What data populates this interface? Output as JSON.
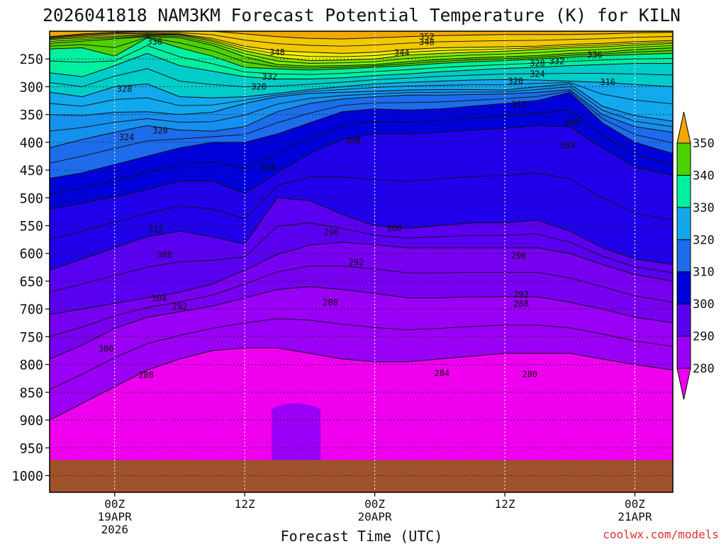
{
  "chart_data": {
    "type": "heatmap",
    "title": "2026041818 NAM3KM Forecast Potential Temperature (K) for KILN",
    "xlabel": "Forecast Time (UTC)",
    "ylabel": "",
    "watermark": "coolwx.com/models",
    "y_axis": {
      "unit": "hPa",
      "range": [
        200,
        1030
      ],
      "ticks": [
        250,
        300,
        350,
        400,
        450,
        500,
        550,
        600,
        650,
        700,
        750,
        800,
        850,
        900,
        950,
        1000
      ],
      "tick_labels": [
        "250",
        "300",
        "350",
        "400",
        "450",
        "500",
        "550",
        "600",
        "650",
        "700",
        "750",
        "800",
        "850",
        "900",
        "950",
        "1000"
      ]
    },
    "x_axis": {
      "unit": "hours since 2026-04-18 18Z",
      "range": [
        0,
        57.5
      ],
      "ticks": [
        {
          "hour": 6,
          "lines": [
            "00Z",
            "19APR",
            "2026"
          ]
        },
        {
          "hour": 18,
          "lines": [
            "12Z"
          ]
        },
        {
          "hour": 30,
          "lines": [
            "00Z",
            "20APR"
          ]
        },
        {
          "hour": 42,
          "lines": [
            "12Z"
          ]
        },
        {
          "hour": 54,
          "lines": [
            "00Z",
            "21APR"
          ]
        }
      ]
    },
    "colorbar": {
      "levels": [
        280,
        290,
        300,
        310,
        320,
        330,
        340,
        350
      ],
      "labels": [
        "280",
        "290",
        "300",
        "310",
        "320",
        "330",
        "340",
        "350"
      ],
      "colors": [
        "#9a00f5",
        "#5a00f0",
        "#0000d8",
        "#1c6cec",
        "#12a8ee",
        "#00f0a0",
        "#4cd200",
        "#eeee00",
        "#f2a800",
        "#ee00ee"
      ]
    },
    "level_colors": {
      "below_280": "#ee00ee",
      "280_285": "#9a00f5",
      "285_290": "#7800f0",
      "290_295": "#5a00f0",
      "295_300": "#2000e8",
      "300_305": "#0000d8",
      "305_310": "#1c6cec",
      "310_315": "#1590ee",
      "315_320": "#12a8ee",
      "320_325": "#00ccc8",
      "325_330": "#00f0a0",
      "330_335": "#4cd200",
      "335_340": "#7cec00",
      "340_345": "#eeee00",
      "345_350": "#f2c800",
      "above_350": "#f2a800",
      "ground": "#a0522d"
    },
    "surface_pressure_hpa": 972,
    "contour_labels": [
      {
        "value": "352",
        "hour": 34.8,
        "p": 210
      },
      {
        "value": "348",
        "hour": 34.8,
        "p": 220
      },
      {
        "value": "336",
        "hour": 9.7,
        "p": 219
      },
      {
        "value": "348",
        "hour": 21.0,
        "p": 238
      },
      {
        "value": "344",
        "hour": 32.5,
        "p": 239
      },
      {
        "value": "336",
        "hour": 50.3,
        "p": 243
      },
      {
        "value": "332",
        "hour": 46.8,
        "p": 254
      },
      {
        "value": "328",
        "hour": 45.0,
        "p": 258
      },
      {
        "value": "324",
        "hour": 45.0,
        "p": 277
      },
      {
        "value": "332",
        "hour": 20.3,
        "p": 282
      },
      {
        "value": "320",
        "hour": 43.0,
        "p": 290
      },
      {
        "value": "316",
        "hour": 51.5,
        "p": 292
      },
      {
        "value": "328",
        "hour": 6.9,
        "p": 304
      },
      {
        "value": "328",
        "hour": 19.3,
        "p": 300
      },
      {
        "value": "312",
        "hour": 43.3,
        "p": 332
      },
      {
        "value": "308",
        "hour": 48.2,
        "p": 365
      },
      {
        "value": "320",
        "hour": 10.2,
        "p": 379
      },
      {
        "value": "324",
        "hour": 7.1,
        "p": 391
      },
      {
        "value": "308",
        "hour": 28.0,
        "p": 397
      },
      {
        "value": "304",
        "hour": 47.8,
        "p": 406
      },
      {
        "value": "304",
        "hour": 20.1,
        "p": 444
      },
      {
        "value": "312",
        "hour": 9.8,
        "p": 557
      },
      {
        "value": "300",
        "hour": 31.8,
        "p": 555
      },
      {
        "value": "296",
        "hour": 26.0,
        "p": 562
      },
      {
        "value": "296",
        "hour": 43.3,
        "p": 604
      },
      {
        "value": "308",
        "hour": 10.6,
        "p": 603
      },
      {
        "value": "292",
        "hour": 28.3,
        "p": 616
      },
      {
        "value": "304",
        "hour": 10.1,
        "p": 681
      },
      {
        "value": "292",
        "hour": 12.0,
        "p": 696
      },
      {
        "value": "292",
        "hour": 43.5,
        "p": 674
      },
      {
        "value": "288",
        "hour": 25.9,
        "p": 688
      },
      {
        "value": "288",
        "hour": 43.5,
        "p": 691
      },
      {
        "value": "300",
        "hour": 5.2,
        "p": 772
      },
      {
        "value": "288",
        "hour": 8.9,
        "p": 819
      },
      {
        "value": "284",
        "hour": 36.2,
        "p": 816
      },
      {
        "value": "280",
        "hour": 44.3,
        "p": 818
      }
    ]
  }
}
